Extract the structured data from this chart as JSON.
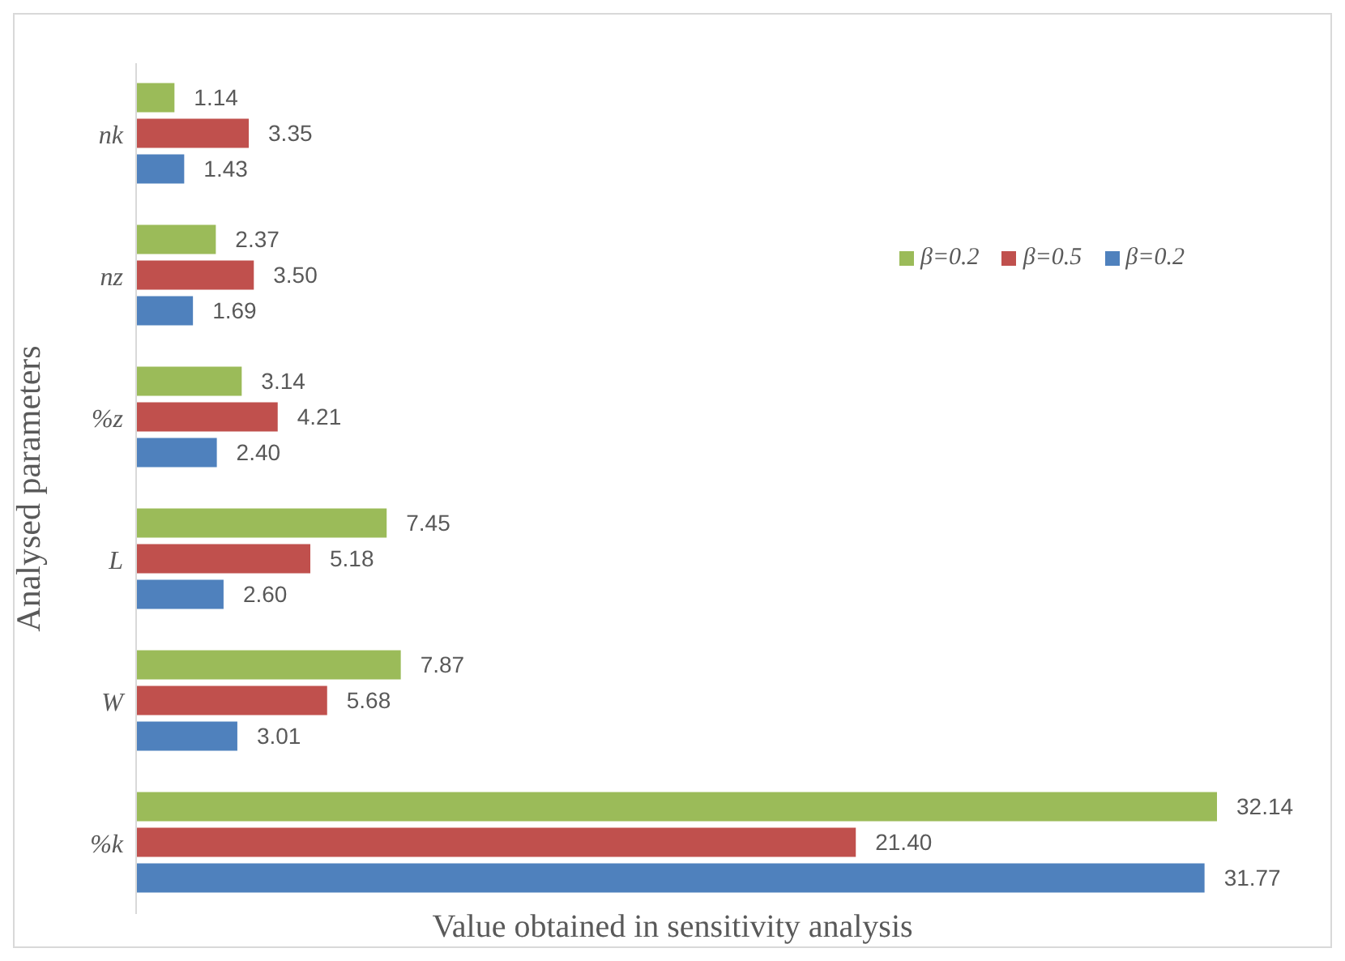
{
  "chart_data": {
    "type": "bar",
    "orientation": "horizontal",
    "xlabel": "Value obtained in sensitivity analysis",
    "ylabel": "Analysed parameters",
    "categories": [
      "nk",
      "nz",
      "%z",
      "L",
      "W",
      "%k"
    ],
    "series": [
      {
        "name": "β=0.2",
        "color": "#9bbb59",
        "values": [
          1.14,
          2.37,
          3.14,
          7.45,
          7.87,
          32.14
        ],
        "value_labels": [
          "1.14",
          "2.37",
          "3.14",
          "7.45",
          "7.87",
          "32.14"
        ]
      },
      {
        "name": "β=0.5",
        "color": "#c0504d",
        "values": [
          3.35,
          3.5,
          4.21,
          5.18,
          5.68,
          21.4
        ],
        "value_labels": [
          "3.35",
          "3.50",
          "4.21",
          "5.18",
          "5.68",
          "21.40"
        ]
      },
      {
        "name": "β=0.2",
        "color": "#4f81bd",
        "values": [
          1.43,
          1.69,
          2.4,
          2.6,
          3.01,
          31.77
        ],
        "value_labels": [
          "1.43",
          "1.69",
          "2.40",
          "2.60",
          "3.01",
          "31.77"
        ]
      }
    ],
    "tick_labels": "y",
    "legend": "top right"
  }
}
